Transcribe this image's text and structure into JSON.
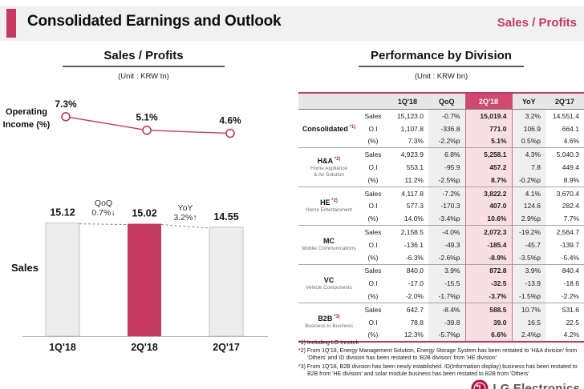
{
  "header": {
    "title": "Consolidated Earnings and Outlook",
    "topic": "Sales / Profits"
  },
  "left_panel": {
    "title": "Sales / Profits",
    "unit": "(Unit : KRW tn)"
  },
  "right_panel": {
    "title": "Performance by Division",
    "unit": "(Unit : KRW bn)",
    "table": {
      "columns": [
        "1Q'18",
        "QoQ",
        "2Q'18",
        "YoY",
        "2Q'17"
      ],
      "highlight_column": "2Q'18",
      "row_labels": [
        "Sales",
        "O.I",
        "(%)"
      ],
      "divisions": [
        {
          "name": "Consolidated",
          "mark": "*1)",
          "subtitle": [],
          "rows": [
            [
              "15,123.0",
              "-0.7%",
              "15,019.4",
              "3.2%",
              "14,551.4"
            ],
            [
              "1,107.8",
              "-336.8",
              "771.0",
              "106.9",
              "664.1"
            ],
            [
              "7.3%",
              "-2.2%p",
              "5.1%",
              "0.5%p",
              "4.6%"
            ]
          ]
        },
        {
          "name": "H&A",
          "mark": "*2)",
          "subtitle": [
            "Home Appliance",
            "& Air Solution"
          ],
          "rows": [
            [
              "4,923.9",
              "6.8%",
              "5,258.1",
              "4.3%",
              "5,040.3"
            ],
            [
              "553.1",
              "-95.9",
              "457.2",
              "7.8",
              "449.4"
            ],
            [
              "11.2%",
              "-2.5%p",
              "8.7%",
              "-0.2%p",
              "8.9%"
            ]
          ]
        },
        {
          "name": "HE",
          "mark": "*2)",
          "subtitle": [
            "Home Entertainment"
          ],
          "rows": [
            [
              "4,117.8",
              "-7.2%",
              "3,822.2",
              "4.1%",
              "3,670.4"
            ],
            [
              "577.3",
              "-170.3",
              "407.0",
              "124.6",
              "282.4"
            ],
            [
              "14.0%",
              "-3.4%p",
              "10.6%",
              "2.9%p",
              "7.7%"
            ]
          ]
        },
        {
          "name": "MC",
          "mark": "",
          "subtitle": [
            "Mobile Communications"
          ],
          "rows": [
            [
              "2,158.5",
              "-4.0%",
              "2,072.3",
              "-19.2%",
              "2,564.7"
            ],
            [
              "-136.1",
              "-49.3",
              "-185.4",
              "-45.7",
              "-139.7"
            ],
            [
              "-6.3%",
              "-2.6%p",
              "-8.9%",
              "-3.5%p",
              "-5.4%"
            ]
          ]
        },
        {
          "name": "VC",
          "mark": "",
          "subtitle": [
            "Vehicle Components"
          ],
          "rows": [
            [
              "840.0",
              "3.9%",
              "872.8",
              "3.9%",
              "840.4"
            ],
            [
              "-17.0",
              "-15.5",
              "-32.5",
              "-13.9",
              "-18.6"
            ],
            [
              "-2.0%",
              "-1.7%p",
              "-3.7%",
              "-1.5%p",
              "-2.2%"
            ]
          ]
        },
        {
          "name": "B2B",
          "mark": "*3)",
          "subtitle": [
            "Business to Business"
          ],
          "rows": [
            [
              "642.7",
              "-8.4%",
              "588.5",
              "10.7%",
              "531.6"
            ],
            [
              "78.8",
              "-39.8",
              "39.0",
              "16.5",
              "22.5"
            ],
            [
              "12.3%",
              "-5.7%p",
              "6.6%",
              "2.4%p",
              "4.2%"
            ]
          ]
        }
      ]
    },
    "footnotes": [
      "*1) Including LG Innotek",
      "*2) From 1Q'18, Energy Management Solution, Energy Storage System has been restated to 'H&A division' from 'Others' and ID division has been restated to 'B2B division' from 'HE division'",
      "*3) From 1Q'18, B2B division has been newly established. ID(Information display) business has been restated to B2B from 'HE division' and solar module business has been restated to B2B from 'Others'"
    ]
  },
  "chart_data": [
    {
      "type": "line",
      "title": "Operating Income (%)",
      "categories": [
        "1Q'18",
        "2Q'18",
        "2Q'17"
      ],
      "values": [
        7.3,
        5.1,
        4.6
      ],
      "labels": [
        "7.3%",
        "5.1%",
        "4.6%"
      ],
      "unit": "%",
      "marker": "open-circle",
      "grid": false
    },
    {
      "type": "bar",
      "ylabel": "Sales",
      "categories": [
        "1Q'18",
        "2Q'18",
        "2Q'17"
      ],
      "values": [
        15.12,
        15.02,
        14.55
      ],
      "labels": [
        "15.12",
        "15.02",
        "14.55"
      ],
      "unit": "KRW tn",
      "highlight_index": 1,
      "annotations": [
        {
          "label": "QoQ",
          "delta": "0.7%↓"
        },
        {
          "label": "YoY",
          "delta": "3.2%↑"
        }
      ],
      "grid": false
    }
  ],
  "footer": {
    "logo_text": "LG Electronics"
  },
  "colors": {
    "accent": "#c43a60",
    "highlight_header_bg": "#ce4a6f",
    "highlight_col_bg": "#f7dfe4",
    "shade_col_bg": "#efefef",
    "table_header_bg": "#e7e7e7",
    "bar_gray": "#ededed",
    "topbar_bg": "#f1f1f1",
    "logo_red": "#b50b3f"
  }
}
